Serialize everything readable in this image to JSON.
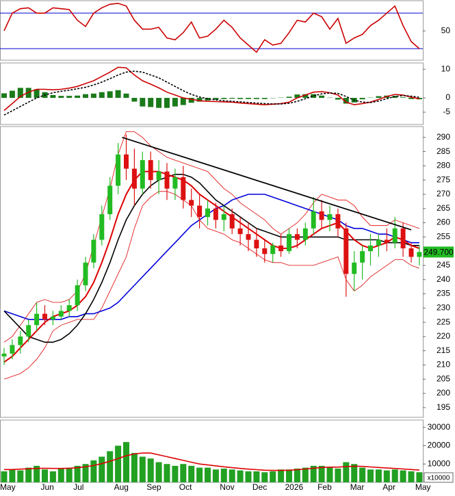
{
  "chart_data": [
    {
      "type": "line",
      "ylim": [
        17,
        84
      ],
      "yticks": [
        50
      ],
      "levels": [
        30,
        70
      ],
      "level_color": "#0000cc",
      "series": [
        {
          "color": "#cc0000",
          "values": [
            50,
            70,
            75,
            76,
            70,
            70,
            76,
            75,
            74,
            62,
            55,
            70,
            76,
            80,
            81,
            78,
            62,
            52,
            52,
            54,
            42,
            40,
            48,
            60,
            42,
            44,
            52,
            62,
            54,
            42,
            34,
            26,
            40,
            34,
            36,
            48,
            62,
            60,
            70,
            66,
            52,
            64,
            36,
            42,
            46,
            56,
            62,
            70,
            78,
            56,
            38,
            30
          ]
        }
      ]
    },
    {
      "type": "macd",
      "ylim": [
        -9.3,
        12.2
      ],
      "yticks": [
        10,
        0,
        -5
      ],
      "histogram": {
        "color": "#1a7a1a",
        "values": [
          1.6,
          2.5,
          3.5,
          3.5,
          3,
          2,
          1,
          0.7,
          0.7,
          0.8,
          1.3,
          1.5,
          2,
          2.3,
          2.7,
          1.5,
          -1.3,
          -3,
          -3.2,
          -3.5,
          -3.5,
          -3,
          -2.5,
          -1.7,
          -1.3,
          -0.9,
          -0.6,
          -0.4,
          -0.3,
          -0.4,
          -0.4,
          -0.4,
          -0.4,
          -0.1,
          0.1,
          0.4,
          1.2,
          1.3,
          1.3,
          0.8,
          0.1,
          -0.6,
          -2,
          -1.6,
          -0.5,
          0.1,
          0.6,
          0.8,
          0.7,
          0.2,
          -0.4,
          -0.5
        ]
      },
      "series": [
        {
          "color": "#cc0000",
          "style": "solid",
          "values": [
            -4.4,
            -2,
            0.5,
            2,
            3,
            3,
            2.8,
            3,
            3.4,
            4,
            5,
            6,
            7.5,
            9,
            10.7,
            10.5,
            8,
            6,
            4.8,
            3.5,
            2,
            1,
            0,
            -0.5,
            -1,
            -1.2,
            -1.3,
            -1.4,
            -1.5,
            -1.8,
            -2,
            -2.2,
            -2.4,
            -2.2,
            -2,
            -1.5,
            0,
            1,
            2,
            2.2,
            1.8,
            1,
            -1.5,
            -2.4,
            -2,
            -1.5,
            -0.5,
            0.5,
            1.2,
            1,
            0.2,
            -0.3
          ]
        },
        {
          "color": "#000000",
          "style": "dashed",
          "values": [
            -6,
            -4.5,
            -3,
            -1.5,
            0,
            1,
            1.8,
            2.3,
            2.7,
            3.2,
            3.7,
            4.5,
            5.5,
            6.7,
            8,
            9,
            9.3,
            9,
            8,
            7,
            5.5,
            4,
            2.5,
            1.2,
            0.3,
            -0.3,
            -0.7,
            -1,
            -1.2,
            -1.4,
            -1.6,
            -1.8,
            -2,
            -2.1,
            -2.1,
            -1.9,
            -1.2,
            -0.3,
            0.7,
            1.4,
            1.7,
            1.6,
            0.5,
            -0.8,
            -1.5,
            -1.6,
            -1.1,
            -0.3,
            0.5,
            0.8,
            0.6,
            0.2
          ]
        }
      ]
    },
    {
      "type": "candlestick",
      "ylim": [
        191.6,
        293.8
      ],
      "yticks": [
        195,
        200,
        205,
        210,
        215,
        220,
        225,
        230,
        235,
        240,
        245,
        250,
        255,
        260,
        265,
        270,
        275,
        280,
        285,
        290
      ],
      "up_color": "#22bb22",
      "down_color": "#dd1111",
      "open": [
        213,
        214,
        217,
        220,
        224,
        228,
        226,
        227,
        229,
        231,
        238,
        246,
        254,
        263,
        273,
        284,
        279,
        272,
        282,
        275,
        278,
        272,
        276,
        268,
        266,
        262,
        265,
        261,
        263,
        258,
        256,
        254,
        251,
        249,
        252,
        250,
        256,
        254,
        258,
        264,
        261,
        263,
        258,
        242,
        246,
        250,
        252,
        254,
        253,
        258,
        251,
        248
      ],
      "high": [
        216,
        219,
        222,
        226,
        232,
        231,
        229,
        231,
        233,
        240,
        248,
        256,
        266,
        276,
        288,
        291,
        286,
        285,
        285,
        282,
        281,
        279,
        280,
        272,
        270,
        268,
        267,
        266,
        265,
        262,
        260,
        258,
        254,
        253,
        256,
        258,
        258,
        260,
        269,
        268,
        266,
        265,
        260,
        250,
        252,
        256,
        256,
        258,
        262,
        260,
        253,
        252
      ],
      "low": [
        210,
        212,
        214,
        218,
        222,
        224,
        224,
        226,
        227,
        229,
        236,
        244,
        252,
        261,
        270,
        275,
        266,
        270,
        272,
        270,
        268,
        268,
        265,
        262,
        258,
        259,
        258,
        257,
        256,
        252,
        250,
        248,
        246,
        246,
        248,
        249,
        251,
        252,
        256,
        258,
        257,
        255,
        234,
        236,
        240,
        245,
        248,
        250,
        251,
        248,
        246,
        245
      ],
      "close": [
        214,
        217,
        220,
        224,
        228,
        226,
        227,
        229,
        231,
        238,
        246,
        254,
        263,
        273,
        284,
        279,
        272,
        282,
        275,
        278,
        272,
        276,
        268,
        266,
        262,
        265,
        261,
        263,
        258,
        256,
        254,
        251,
        249,
        252,
        250,
        256,
        254,
        258,
        264,
        261,
        263,
        258,
        242,
        246,
        250,
        252,
        254,
        253,
        258,
        251,
        248,
        249.7
      ],
      "series": [
        {
          "color": "#dd0000",
          "width": 0.8,
          "values": [
            218,
            220,
            224,
            228,
            232,
            233,
            232,
            232,
            233,
            236,
            242,
            252,
            262,
            272,
            284,
            292,
            292,
            290,
            287,
            285,
            283,
            282,
            281,
            280,
            279,
            278,
            275,
            272,
            270,
            267,
            265,
            263,
            261,
            258,
            256,
            258,
            260,
            263,
            267,
            270,
            269,
            268,
            268,
            266,
            262,
            259,
            259,
            259,
            261,
            260,
            259,
            258
          ]
        },
        {
          "color": "#dd0000",
          "width": 0.8,
          "values": [
            205,
            206,
            207,
            209,
            212,
            216,
            222,
            224,
            225,
            226,
            226,
            226,
            230,
            236,
            242,
            248,
            258,
            266,
            269,
            271,
            271,
            270,
            268,
            266,
            261,
            258,
            257,
            256,
            254,
            253,
            251,
            249,
            247,
            246,
            246,
            245,
            245,
            245,
            245,
            246,
            247,
            248,
            240,
            236,
            238,
            241,
            243,
            245,
            247,
            247,
            245,
            244
          ]
        },
        {
          "color": "#0000dd",
          "width": 1.6,
          "values": [
            229,
            228,
            227,
            226,
            226,
            226,
            226,
            226,
            227,
            227,
            228,
            228,
            229,
            230,
            232,
            235,
            238,
            241,
            244,
            247,
            250,
            253,
            256,
            259,
            261,
            263,
            265,
            266,
            268,
            269,
            270,
            270,
            270,
            269,
            268,
            267,
            266,
            265,
            264,
            263,
            262,
            261,
            259,
            258,
            258,
            257,
            256,
            256,
            255,
            254,
            253,
            253
          ]
        },
        {
          "color": "#000000",
          "width": 1.6,
          "values": [
            229,
            226,
            223,
            220,
            219,
            218,
            218,
            219,
            221,
            224,
            228,
            233,
            239,
            246,
            254,
            261,
            266,
            270,
            273,
            275,
            276,
            277,
            277,
            276,
            274,
            271,
            268,
            266,
            264,
            262,
            260,
            258,
            257,
            256,
            255,
            255,
            255,
            255,
            255,
            255,
            255,
            255,
            254,
            254,
            254,
            254,
            254,
            253,
            253,
            253,
            252,
            252
          ]
        },
        {
          "color": "#dd0000",
          "width": 2,
          "values": [
            211,
            213,
            216,
            219,
            222,
            225,
            227,
            228,
            229,
            231,
            234,
            239,
            246,
            254,
            263,
            270,
            275,
            278,
            278,
            278,
            277,
            276,
            275,
            273,
            270,
            268,
            266,
            264,
            262,
            260,
            258,
            256,
            254,
            252,
            251,
            251,
            252,
            254,
            256,
            258,
            259,
            260,
            257,
            254,
            252,
            251,
            252,
            253,
            255,
            254,
            252,
            251
          ]
        }
      ],
      "trendline": {
        "color": "#000000",
        "x": [
          14.5,
          50
        ],
        "values": [
          290,
          257.5
        ]
      },
      "last_price": {
        "value": 249.7,
        "label": "249.700"
      },
      "last_price_color": "#22bb22"
    },
    {
      "type": "bar",
      "ylim": [
        0,
        34000
      ],
      "yticks": [
        10000,
        20000,
        30000
      ],
      "unit_label": "x10000",
      "color": "#22a022",
      "values": [
        6000,
        7000,
        6500,
        8000,
        9000,
        7000,
        6000,
        7500,
        8000,
        9000,
        10000,
        12000,
        14000,
        17000,
        20000,
        22000,
        16000,
        14000,
        13000,
        11000,
        10000,
        9000,
        10000,
        9000,
        8000,
        8000,
        7000,
        7500,
        7000,
        6500,
        6000,
        6000,
        5500,
        6000,
        7000,
        7000,
        7500,
        8000,
        9000,
        9000,
        8000,
        7500,
        11000,
        10000,
        8000,
        7000,
        7000,
        6500,
        7000,
        6500,
        6000,
        5500
      ],
      "series": [
        {
          "color": "#dd0000",
          "values": [
            7000,
            7000,
            7200,
            7400,
            7600,
            7700,
            7600,
            7600,
            7700,
            8000,
            8500,
            9200,
            10200,
            11500,
            13000,
            14500,
            15500,
            16000,
            16000,
            15000,
            14000,
            13000,
            12000,
            11000,
            10000,
            9500,
            9000,
            8500,
            8000,
            7600,
            7200,
            6900,
            6600,
            6500,
            6500,
            6600,
            6900,
            7300,
            7700,
            8100,
            8300,
            8300,
            8600,
            8800,
            8700,
            8400,
            8100,
            7800,
            7600,
            7300,
            7000,
            6700
          ]
        }
      ],
      "categories": [
        "May",
        null,
        null,
        null,
        null,
        "Jun",
        null,
        null,
        null,
        "Jul",
        null,
        null,
        null,
        null,
        "Aug",
        null,
        null,
        null,
        "Sep",
        null,
        null,
        null,
        "Oct",
        null,
        null,
        null,
        null,
        "Nov",
        null,
        null,
        null,
        "Dec",
        null,
        null,
        null,
        "2026",
        null,
        null,
        null,
        "Feb",
        null,
        null,
        null,
        "Mar",
        null,
        null,
        null,
        "Apr",
        null,
        null,
        null,
        "May"
      ]
    }
  ]
}
